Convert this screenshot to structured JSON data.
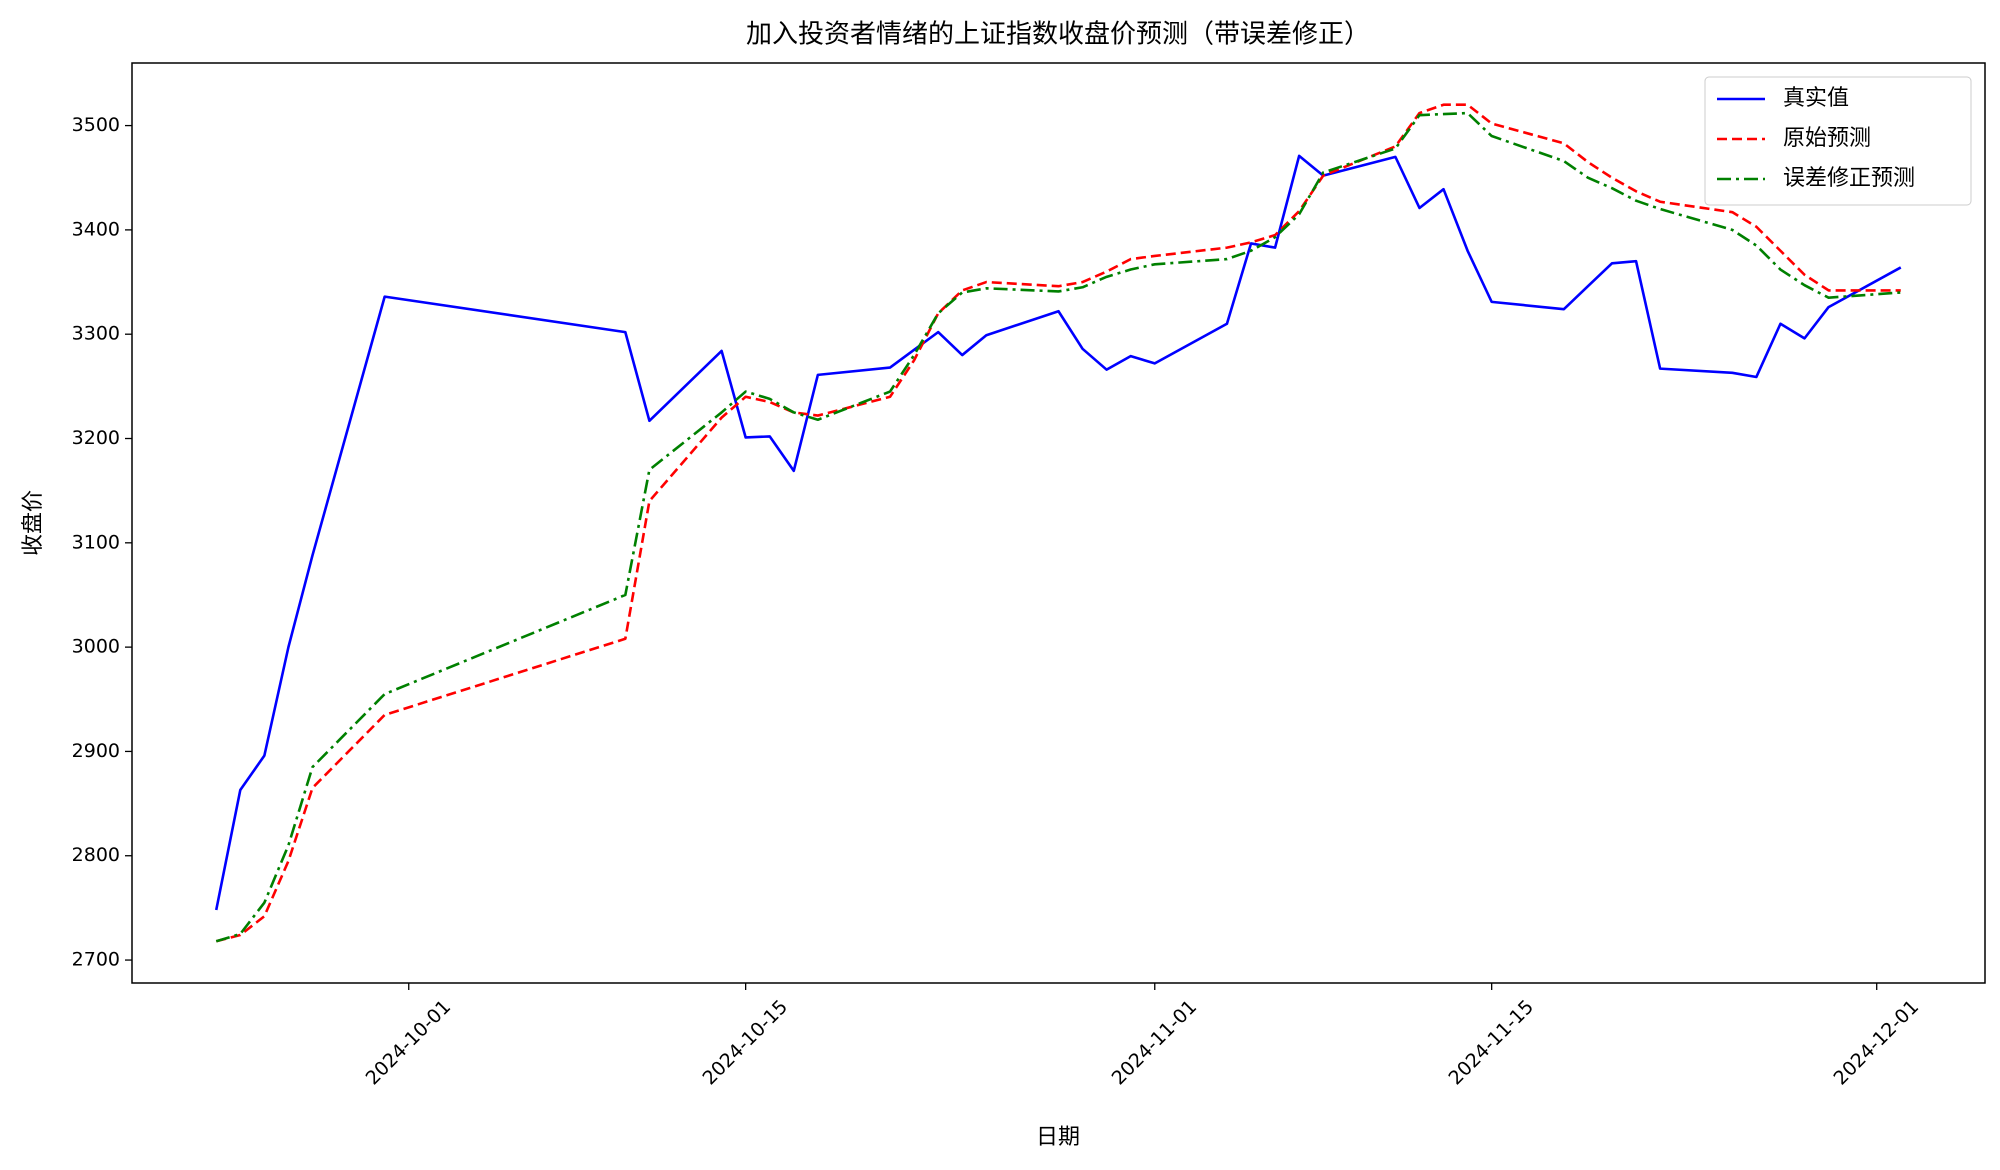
{
  "chart_data": {
    "type": "line",
    "title": "加入投资者情绪的上证指数收盘价预测（带误差修正）",
    "xlabel": "日期",
    "ylabel": "收盘价",
    "x": [
      "2024-09-23",
      "2024-09-24",
      "2024-09-25",
      "2024-09-26",
      "2024-09-27",
      "2024-09-30",
      "2024-10-10",
      "2024-10-11",
      "2024-10-14",
      "2024-10-15",
      "2024-10-16",
      "2024-10-17",
      "2024-10-18",
      "2024-10-21",
      "2024-10-22",
      "2024-10-23",
      "2024-10-24",
      "2024-10-25",
      "2024-10-28",
      "2024-10-29",
      "2024-10-30",
      "2024-10-31",
      "2024-11-01",
      "2024-11-04",
      "2024-11-05",
      "2024-11-06",
      "2024-11-07",
      "2024-11-08",
      "2024-11-11",
      "2024-11-12",
      "2024-11-13",
      "2024-11-14",
      "2024-11-15",
      "2024-11-18",
      "2024-11-19",
      "2024-11-20",
      "2024-11-21",
      "2024-11-22",
      "2024-11-25",
      "2024-11-26",
      "2024-11-27",
      "2024-11-28",
      "2024-11-29",
      "2024-12-02"
    ],
    "series": [
      {
        "name": "真实值",
        "color": "#0000ff",
        "dash": "solid",
        "values": [
          2748,
          2863,
          2896,
          3000,
          3088,
          3336,
          3302,
          3217,
          3284,
          3201,
          3202,
          3169,
          3261,
          3268,
          3285,
          3302,
          3280,
          3299,
          3322,
          3286,
          3266,
          3279,
          3272,
          3310,
          3387,
          3383,
          3471,
          3452,
          3470,
          3421,
          3439,
          3380,
          3331,
          3324,
          3346,
          3368,
          3370,
          3267,
          3263,
          3259,
          3310,
          3296,
          3326,
          3364
        ]
      },
      {
        "name": "原始预测",
        "color": "#ff0000",
        "dash": "dashed",
        "values": [
          2718,
          2724,
          2742,
          2795,
          2865,
          2935,
          3008,
          3140,
          3220,
          3240,
          3235,
          3225,
          3222,
          3240,
          3275,
          3320,
          3342,
          3350,
          3346,
          3350,
          3360,
          3372,
          3375,
          3383,
          3388,
          3395,
          3418,
          3452,
          3480,
          3512,
          3520,
          3520,
          3502,
          3483,
          3465,
          3450,
          3437,
          3427,
          3417,
          3403,
          3380,
          3357,
          3342,
          3342
        ]
      },
      {
        "name": "误差修正预测",
        "color": "#008000",
        "dash": "dashdot",
        "values": [
          2718,
          2725,
          2755,
          2810,
          2885,
          2955,
          3050,
          3170,
          3225,
          3245,
          3238,
          3225,
          3218,
          3245,
          3280,
          3320,
          3340,
          3344,
          3341,
          3345,
          3355,
          3362,
          3367,
          3372,
          3380,
          3393,
          3415,
          3455,
          3478,
          3510,
          3511,
          3512,
          3490,
          3466,
          3450,
          3440,
          3428,
          3420,
          3400,
          3385,
          3362,
          3347,
          3335,
          3340
        ]
      }
    ],
    "xlim": [
      "2024-09-19T12:00Z",
      "2024-12-05T12:00Z"
    ],
    "xticks": [
      "2024-10-01",
      "2024-10-15",
      "2024-11-01",
      "2024-11-15",
      "2024-12-01"
    ],
    "ylim": [
      2678,
      3560
    ],
    "yticks": [
      2700,
      2800,
      2900,
      3000,
      3100,
      3200,
      3300,
      3400,
      3500
    ],
    "grid": false,
    "legend": "upper right"
  }
}
